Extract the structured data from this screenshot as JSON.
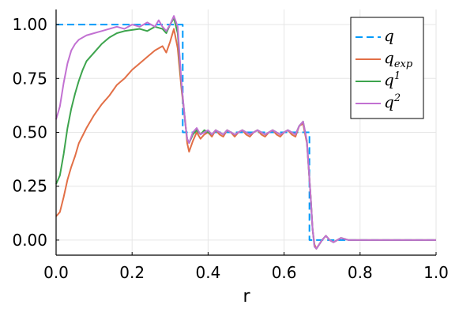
{
  "chart_data": {
    "type": "line",
    "title": "",
    "xlabel": "r",
    "ylabel": "",
    "xlim": [
      0,
      1
    ],
    "ylim": [
      -0.07,
      1.07
    ],
    "xticks": [
      0.0,
      0.2,
      0.4,
      0.6,
      0.8,
      1.0
    ],
    "xtick_labels": [
      "0.0",
      "0.2",
      "0.4",
      "0.6",
      "0.8",
      "1.0"
    ],
    "yticks": [
      0.0,
      0.25,
      0.5,
      0.75,
      1.0
    ],
    "ytick_labels": [
      "0.00",
      "0.25",
      "0.50",
      "0.75",
      "1.00"
    ],
    "grid": true,
    "legend_position": "top-right",
    "series": [
      {
        "name": "q",
        "legend_base": "q",
        "legend_sup": "",
        "legend_sub": "",
        "style": "dashed",
        "color": "#009AFA",
        "points": [
          [
            0.0,
            1.0
          ],
          [
            0.3333,
            1.0
          ],
          [
            0.3333,
            0.5
          ],
          [
            0.6667,
            0.5
          ],
          [
            0.6667,
            0.0
          ],
          [
            1.0,
            0.0
          ]
        ]
      },
      {
        "name": "q_exp",
        "legend_base": "q",
        "legend_sup": "",
        "legend_sub": "exp",
        "style": "solid",
        "color": "#E26F46",
        "points": [
          [
            0.0,
            0.11
          ],
          [
            0.01,
            0.13
          ],
          [
            0.02,
            0.2
          ],
          [
            0.03,
            0.28
          ],
          [
            0.04,
            0.34
          ],
          [
            0.05,
            0.39
          ],
          [
            0.06,
            0.45
          ],
          [
            0.08,
            0.52
          ],
          [
            0.1,
            0.58
          ],
          [
            0.12,
            0.63
          ],
          [
            0.14,
            0.67
          ],
          [
            0.16,
            0.72
          ],
          [
            0.18,
            0.75
          ],
          [
            0.2,
            0.79
          ],
          [
            0.22,
            0.82
          ],
          [
            0.24,
            0.85
          ],
          [
            0.26,
            0.88
          ],
          [
            0.28,
            0.9
          ],
          [
            0.29,
            0.87
          ],
          [
            0.3,
            0.92
          ],
          [
            0.31,
            0.98
          ],
          [
            0.32,
            0.89
          ],
          [
            0.33,
            0.7
          ],
          [
            0.34,
            0.55
          ],
          [
            0.345,
            0.45
          ],
          [
            0.35,
            0.41
          ],
          [
            0.36,
            0.46
          ],
          [
            0.37,
            0.5
          ],
          [
            0.38,
            0.47
          ],
          [
            0.39,
            0.49
          ],
          [
            0.4,
            0.5
          ],
          [
            0.41,
            0.48
          ],
          [
            0.42,
            0.51
          ],
          [
            0.43,
            0.49
          ],
          [
            0.44,
            0.48
          ],
          [
            0.45,
            0.51
          ],
          [
            0.46,
            0.5
          ],
          [
            0.47,
            0.48
          ],
          [
            0.48,
            0.5
          ],
          [
            0.49,
            0.51
          ],
          [
            0.5,
            0.49
          ],
          [
            0.51,
            0.48
          ],
          [
            0.52,
            0.5
          ],
          [
            0.53,
            0.51
          ],
          [
            0.54,
            0.49
          ],
          [
            0.55,
            0.48
          ],
          [
            0.56,
            0.5
          ],
          [
            0.57,
            0.51
          ],
          [
            0.58,
            0.49
          ],
          [
            0.59,
            0.48
          ],
          [
            0.6,
            0.5
          ],
          [
            0.61,
            0.51
          ],
          [
            0.62,
            0.49
          ],
          [
            0.63,
            0.48
          ],
          [
            0.64,
            0.53
          ],
          [
            0.65,
            0.54
          ],
          [
            0.66,
            0.45
          ],
          [
            0.67,
            0.2
          ],
          [
            0.675,
            0.05
          ],
          [
            0.68,
            -0.02
          ],
          [
            0.685,
            -0.04
          ],
          [
            0.7,
            0.0
          ],
          [
            0.71,
            0.02
          ],
          [
            0.72,
            0.0
          ],
          [
            0.73,
            -0.01
          ],
          [
            0.75,
            0.01
          ],
          [
            0.77,
            0.0
          ],
          [
            0.8,
            0.0
          ],
          [
            0.85,
            0.0
          ],
          [
            0.9,
            0.0
          ],
          [
            0.95,
            0.0
          ],
          [
            1.0,
            0.0
          ]
        ]
      },
      {
        "name": "q^1",
        "legend_base": "q",
        "legend_sup": "1",
        "legend_sub": "",
        "style": "solid",
        "color": "#3DA44D",
        "points": [
          [
            0.0,
            0.26
          ],
          [
            0.01,
            0.3
          ],
          [
            0.02,
            0.4
          ],
          [
            0.03,
            0.52
          ],
          [
            0.04,
            0.61
          ],
          [
            0.05,
            0.68
          ],
          [
            0.06,
            0.74
          ],
          [
            0.07,
            0.79
          ],
          [
            0.08,
            0.83
          ],
          [
            0.1,
            0.87
          ],
          [
            0.12,
            0.91
          ],
          [
            0.14,
            0.94
          ],
          [
            0.16,
            0.96
          ],
          [
            0.18,
            0.97
          ],
          [
            0.2,
            0.975
          ],
          [
            0.22,
            0.98
          ],
          [
            0.24,
            0.97
          ],
          [
            0.26,
            0.99
          ],
          [
            0.28,
            0.98
          ],
          [
            0.29,
            0.96
          ],
          [
            0.3,
            1.0
          ],
          [
            0.31,
            1.03
          ],
          [
            0.32,
            0.96
          ],
          [
            0.33,
            0.72
          ],
          [
            0.34,
            0.54
          ],
          [
            0.345,
            0.47
          ],
          [
            0.35,
            0.45
          ],
          [
            0.36,
            0.49
          ],
          [
            0.37,
            0.51
          ],
          [
            0.38,
            0.49
          ],
          [
            0.39,
            0.51
          ],
          [
            0.4,
            0.5
          ],
          [
            0.41,
            0.49
          ],
          [
            0.42,
            0.51
          ],
          [
            0.43,
            0.5
          ],
          [
            0.44,
            0.49
          ],
          [
            0.45,
            0.51
          ],
          [
            0.46,
            0.5
          ],
          [
            0.47,
            0.49
          ],
          [
            0.48,
            0.5
          ],
          [
            0.49,
            0.51
          ],
          [
            0.5,
            0.5
          ],
          [
            0.51,
            0.49
          ],
          [
            0.52,
            0.5
          ],
          [
            0.53,
            0.51
          ],
          [
            0.54,
            0.5
          ],
          [
            0.55,
            0.49
          ],
          [
            0.56,
            0.5
          ],
          [
            0.57,
            0.51
          ],
          [
            0.58,
            0.5
          ],
          [
            0.59,
            0.49
          ],
          [
            0.6,
            0.5
          ],
          [
            0.61,
            0.51
          ],
          [
            0.62,
            0.5
          ],
          [
            0.63,
            0.49
          ],
          [
            0.64,
            0.53
          ],
          [
            0.65,
            0.55
          ],
          [
            0.66,
            0.46
          ],
          [
            0.67,
            0.2
          ],
          [
            0.675,
            0.05
          ],
          [
            0.68,
            -0.03
          ],
          [
            0.685,
            -0.04
          ],
          [
            0.7,
            0.0
          ],
          [
            0.71,
            0.02
          ],
          [
            0.72,
            0.0
          ],
          [
            0.73,
            -0.01
          ],
          [
            0.75,
            0.01
          ],
          [
            0.77,
            0.0
          ],
          [
            0.8,
            0.0
          ],
          [
            0.85,
            0.0
          ],
          [
            0.9,
            0.0
          ],
          [
            0.95,
            0.0
          ],
          [
            1.0,
            0.0
          ]
        ]
      },
      {
        "name": "q^2",
        "legend_base": "q",
        "legend_sup": "2",
        "legend_sub": "",
        "style": "solid",
        "color": "#C271D2",
        "points": [
          [
            0.0,
            0.56
          ],
          [
            0.01,
            0.62
          ],
          [
            0.02,
            0.73
          ],
          [
            0.03,
            0.82
          ],
          [
            0.04,
            0.88
          ],
          [
            0.05,
            0.91
          ],
          [
            0.06,
            0.93
          ],
          [
            0.08,
            0.95
          ],
          [
            0.1,
            0.96
          ],
          [
            0.12,
            0.97
          ],
          [
            0.14,
            0.98
          ],
          [
            0.16,
            0.99
          ],
          [
            0.18,
            0.98
          ],
          [
            0.2,
            1.0
          ],
          [
            0.22,
            0.99
          ],
          [
            0.24,
            1.01
          ],
          [
            0.26,
            0.99
          ],
          [
            0.27,
            1.02
          ],
          [
            0.28,
            0.99
          ],
          [
            0.29,
            0.97
          ],
          [
            0.3,
            1.0
          ],
          [
            0.31,
            1.04
          ],
          [
            0.32,
            0.99
          ],
          [
            0.33,
            0.73
          ],
          [
            0.34,
            0.54
          ],
          [
            0.345,
            0.47
          ],
          [
            0.35,
            0.45
          ],
          [
            0.36,
            0.5
          ],
          [
            0.37,
            0.52
          ],
          [
            0.38,
            0.49
          ],
          [
            0.39,
            0.5
          ],
          [
            0.4,
            0.51
          ],
          [
            0.41,
            0.49
          ],
          [
            0.42,
            0.51
          ],
          [
            0.43,
            0.5
          ],
          [
            0.44,
            0.49
          ],
          [
            0.45,
            0.51
          ],
          [
            0.46,
            0.5
          ],
          [
            0.47,
            0.49
          ],
          [
            0.48,
            0.5
          ],
          [
            0.49,
            0.51
          ],
          [
            0.5,
            0.5
          ],
          [
            0.51,
            0.49
          ],
          [
            0.52,
            0.5
          ],
          [
            0.53,
            0.51
          ],
          [
            0.54,
            0.5
          ],
          [
            0.55,
            0.49
          ],
          [
            0.56,
            0.5
          ],
          [
            0.57,
            0.51
          ],
          [
            0.58,
            0.5
          ],
          [
            0.59,
            0.49
          ],
          [
            0.6,
            0.5
          ],
          [
            0.61,
            0.51
          ],
          [
            0.62,
            0.5
          ],
          [
            0.63,
            0.49
          ],
          [
            0.64,
            0.53
          ],
          [
            0.65,
            0.55
          ],
          [
            0.66,
            0.46
          ],
          [
            0.67,
            0.2
          ],
          [
            0.675,
            0.05
          ],
          [
            0.68,
            -0.03
          ],
          [
            0.685,
            -0.04
          ],
          [
            0.7,
            0.0
          ],
          [
            0.71,
            0.02
          ],
          [
            0.72,
            0.0
          ],
          [
            0.73,
            -0.01
          ],
          [
            0.75,
            0.01
          ],
          [
            0.77,
            0.0
          ],
          [
            0.8,
            0.0
          ],
          [
            0.85,
            0.0
          ],
          [
            0.9,
            0.0
          ],
          [
            0.95,
            0.0
          ],
          [
            1.0,
            0.0
          ]
        ]
      }
    ]
  }
}
